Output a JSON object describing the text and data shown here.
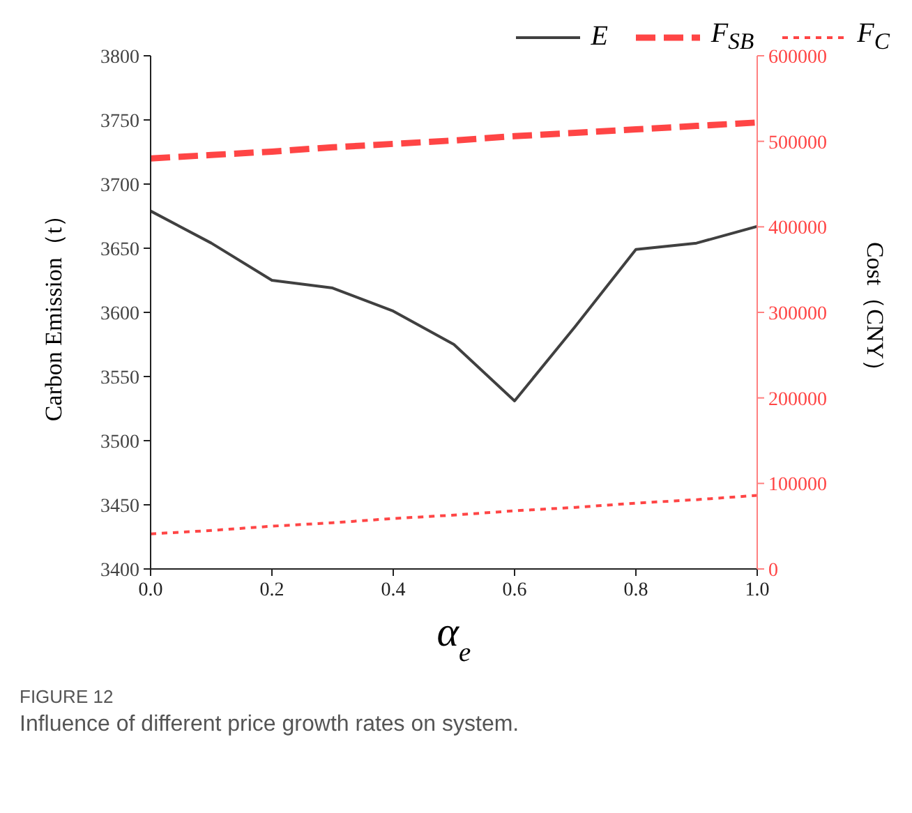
{
  "chart_data": {
    "type": "line",
    "xlabel": "α$_{e}$",
    "ylabel": "Carbon Emission（t）",
    "y2label": "Cost（CNY）",
    "x": [
      0,
      0.1,
      0.2,
      0.3,
      0.4,
      0.5,
      0.6,
      0.7,
      0.8,
      0.9,
      1.0
    ],
    "series": [
      {
        "name": "E",
        "color": "#404040",
        "line_style": "solid",
        "values": [
          3679,
          3654,
          3625,
          3619,
          3601,
          3575,
          3531,
          3589,
          3649,
          3654,
          3667
        ]
      },
      {
        "name": "F$_{SB}$",
        "color": "#ff4545",
        "line_style": "dashed",
        "axis": "y2",
        "values": [
          480000,
          484000,
          488000,
          493000,
          497000,
          501000,
          506000,
          510000,
          514000,
          518000,
          522000
        ]
      },
      {
        "name": "F$_{C}$",
        "color": "#ff4545",
        "line_style": "dotted",
        "axis": "y2",
        "values": [
          41000,
          45000,
          50000,
          54000,
          59000,
          63000,
          68000,
          72000,
          77000,
          81000,
          86000
        ]
      }
    ],
    "xlim": [
      0,
      1
    ],
    "xticks": [
      {
        "value": 0,
        "label": "0.0"
      },
      0.2,
      0.4,
      0.6,
      0.8,
      {
        "value": 1,
        "label": "1.0"
      }
    ],
    "ylim": [
      3400,
      3800
    ],
    "yticks": [
      3400,
      3450,
      3500,
      3550,
      3600,
      3650,
      3700,
      3750,
      3800
    ],
    "y2lim": [
      0,
      600000
    ],
    "y2ticks": [
      0,
      100000,
      200000,
      300000,
      400000,
      500000,
      600000
    ],
    "grid": false,
    "legend": "top right",
    "marker": "none",
    "annotations": [
      "FIGURE 12",
      "Influence of different price growth rates on system."
    ]
  }
}
